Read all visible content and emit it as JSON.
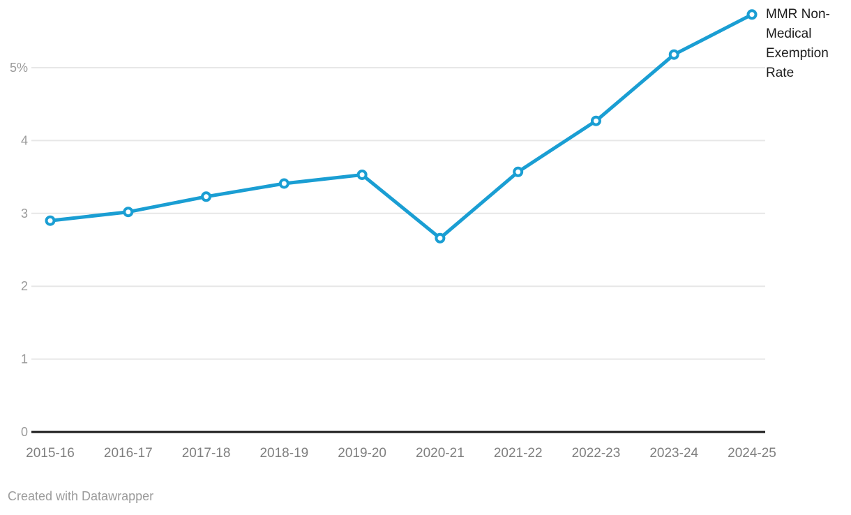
{
  "chart_data": {
    "type": "line",
    "title": "",
    "categories": [
      "2015-16",
      "2016-17",
      "2017-18",
      "2018-19",
      "2019-20",
      "2020-21",
      "2021-22",
      "2022-23",
      "2023-24",
      "2024-25"
    ],
    "series": [
      {
        "name": "MMR Non-Medical Exemption Rate",
        "values": [
          2.9,
          3.02,
          3.23,
          3.41,
          3.53,
          2.66,
          3.57,
          4.27,
          5.18,
          5.73
        ]
      }
    ],
    "xlabel": "",
    "ylabel": "",
    "ylim": [
      0,
      5.95
    ],
    "y_ticks": [
      {
        "value": 0,
        "label": "0"
      },
      {
        "value": 1,
        "label": "1"
      },
      {
        "value": 2,
        "label": "2"
      },
      {
        "value": 3,
        "label": "3"
      },
      {
        "value": 4,
        "label": "4"
      },
      {
        "value": 5,
        "label": "5%"
      }
    ],
    "grid": true,
    "legend_position": "end-of-line-right",
    "line_color": "#1a9ed3",
    "marker_fill": "#ffffff",
    "gridline_color": "#e7e7e7",
    "baseline_color": "#1a1a1a"
  },
  "footer": {
    "credit": "Created with Datawrapper"
  }
}
